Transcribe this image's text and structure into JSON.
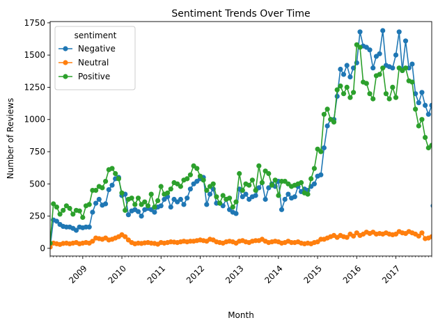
{
  "chart_data": {
    "type": "line",
    "title": "Sentiment Trends Over Time",
    "xlabel": "Month",
    "ylabel": "Number of Reviews",
    "x_range": [
      "2008-03",
      "2017-12"
    ],
    "ylim": [
      -60,
      1760
    ],
    "yticks": [
      0,
      250,
      500,
      750,
      1000,
      1250,
      1500,
      1750
    ],
    "xticks": [
      {
        "date": "2009-01",
        "label": "2009"
      },
      {
        "date": "2010-01",
        "label": "2010"
      },
      {
        "date": "2011-01",
        "label": "2011"
      },
      {
        "date": "2012-01",
        "label": "2012"
      },
      {
        "date": "2013-01",
        "label": "2013"
      },
      {
        "date": "2014-01",
        "label": "2014"
      },
      {
        "date": "2015-01",
        "label": "2015"
      },
      {
        "date": "2016-01",
        "label": "2016"
      },
      {
        "date": "2017-01",
        "label": "2017"
      }
    ],
    "grid": false,
    "legend": {
      "title": "sentiment",
      "placement": "top-left"
    },
    "start_month": "2008-03",
    "series": [
      {
        "name": "Negative",
        "color": "#1f77b4",
        "values": [
          10,
          220,
          210,
          185,
          170,
          165,
          165,
          155,
          140,
          165,
          160,
          165,
          165,
          280,
          350,
          380,
          335,
          345,
          455,
          490,
          540,
          550,
          410,
          420,
          260,
          290,
          300,
          285,
          250,
          300,
          310,
          300,
          280,
          320,
          330,
          380,
          400,
          320,
          380,
          360,
          380,
          340,
          390,
          460,
          500,
          520,
          540,
          550,
          340,
          420,
          460,
          350,
          350,
          330,
          380,
          300,
          280,
          270,
          460,
          400,
          420,
          380,
          400,
          410,
          470,
          510,
          380,
          470,
          500,
          480,
          520,
          300,
          380,
          420,
          390,
          400,
          480,
          440,
          460,
          450,
          480,
          500,
          560,
          570,
          780,
          950,
          1000,
          1000,
          1180,
          1390,
          1350,
          1420,
          1330,
          1400,
          1440,
          1680,
          1570,
          1560,
          1540,
          1400,
          1490,
          1510,
          1690,
          1420,
          1410,
          1400,
          1500,
          1680,
          1380,
          1610,
          1400,
          1430,
          1200,
          1130,
          1210,
          1110,
          1040,
          1110,
          330
        ],
        "overflow_last": true
      },
      {
        "name": "Neutral",
        "color": "#ff7f0e",
        "values": [
          10,
          40,
          35,
          30,
          38,
          40,
          35,
          40,
          45,
          35,
          40,
          45,
          40,
          55,
          80,
          75,
          70,
          80,
          65,
          70,
          80,
          90,
          105,
          90,
          65,
          45,
          35,
          40,
          38,
          42,
          45,
          40,
          38,
          32,
          45,
          40,
          45,
          50,
          48,
          45,
          50,
          55,
          50,
          55,
          55,
          60,
          65,
          60,
          55,
          70,
          65,
          50,
          45,
          40,
          50,
          55,
          50,
          40,
          55,
          60,
          50,
          45,
          55,
          60,
          60,
          70,
          55,
          45,
          50,
          55,
          50,
          40,
          45,
          55,
          45,
          45,
          50,
          40,
          35,
          40,
          35,
          45,
          50,
          70,
          70,
          80,
          90,
          100,
          85,
          100,
          90,
          85,
          110,
          95,
          120,
          100,
          110,
          125,
          115,
          125,
          110,
          115,
          110,
          120,
          110,
          105,
          110,
          130,
          120,
          115,
          130,
          120,
          110,
          95,
          120,
          75,
          80,
          90,
          20
        ]
      },
      {
        "name": "Positive",
        "color": "#2ca02c",
        "values": [
          40,
          345,
          320,
          265,
          295,
          330,
          310,
          265,
          295,
          290,
          240,
          330,
          340,
          450,
          450,
          480,
          470,
          520,
          610,
          620,
          580,
          540,
          430,
          295,
          380,
          390,
          340,
          390,
          340,
          360,
          330,
          420,
          320,
          370,
          480,
          420,
          430,
          460,
          510,
          500,
          480,
          530,
          540,
          570,
          640,
          620,
          560,
          530,
          450,
          480,
          500,
          400,
          350,
          410,
          380,
          390,
          320,
          360,
          580,
          450,
          500,
          490,
          530,
          450,
          640,
          510,
          600,
          580,
          490,
          530,
          410,
          520,
          520,
          500,
          480,
          490,
          500,
          510,
          430,
          420,
          540,
          620,
          770,
          750,
          1040,
          1080,
          1000,
          980,
          1230,
          1260,
          1200,
          1250,
          1170,
          1210,
          1580,
          1560,
          1290,
          1280,
          1200,
          1160,
          1340,
          1350,
          1400,
          1200,
          1160,
          1250,
          1170,
          1400,
          1380,
          1400,
          1300,
          1290,
          1080,
          950,
          1000,
          860,
          780,
          800,
          265
        ]
      }
    ]
  }
}
